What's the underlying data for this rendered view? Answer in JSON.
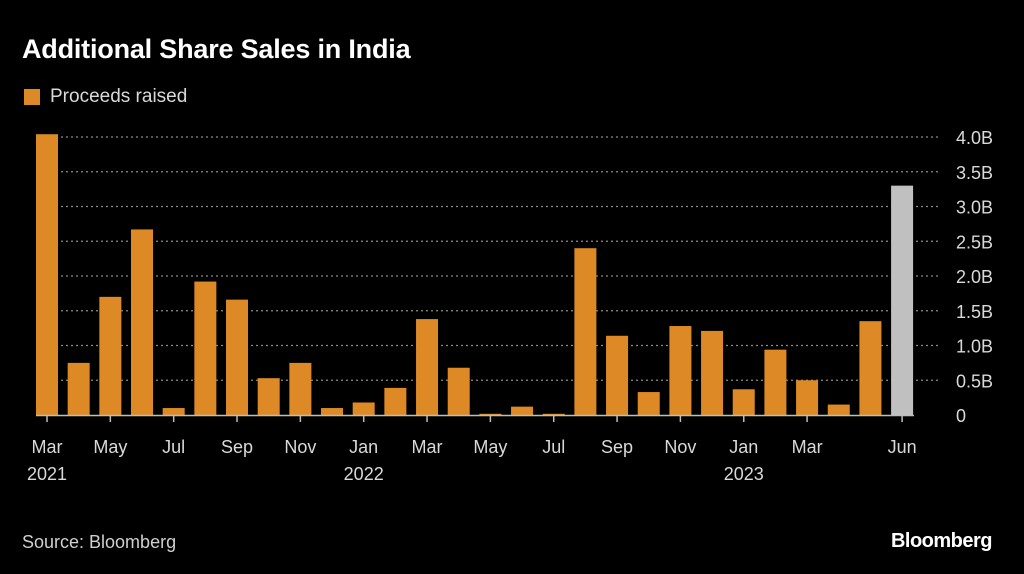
{
  "chart_data": {
    "type": "bar",
    "title": "Additional Share Sales in India",
    "legend": [
      {
        "label": "Proceeds raised",
        "color": "#dd8a26"
      }
    ],
    "legend_position": "top-left",
    "xlabel": "",
    "ylabel": "",
    "ylim": [
      0,
      4.0
    ],
    "grid": true,
    "y_axis_side": "right",
    "y_ticks": [
      {
        "value": 0,
        "label": "0"
      },
      {
        "value": 0.5,
        "label": "0.5B"
      },
      {
        "value": 1.0,
        "label": "1.0B"
      },
      {
        "value": 1.5,
        "label": "1.5B"
      },
      {
        "value": 2.0,
        "label": "2.0B"
      },
      {
        "value": 2.5,
        "label": "2.5B"
      },
      {
        "value": 3.0,
        "label": "3.0B"
      },
      {
        "value": 3.5,
        "label": "3.5B"
      },
      {
        "value": 4.0,
        "label": "4.0B"
      }
    ],
    "categories": [
      "Mar 2021",
      "Apr 2021",
      "May 2021",
      "Jun 2021",
      "Jul 2021",
      "Aug 2021",
      "Sep 2021",
      "Oct 2021",
      "Nov 2021",
      "Dec 2021",
      "Jan 2022",
      "Feb 2022",
      "Mar 2022",
      "Apr 2022",
      "May 2022",
      "Jun 2022",
      "Jul 2022",
      "Aug 2022",
      "Sep 2022",
      "Oct 2022",
      "Nov 2022",
      "Dec 2022",
      "Jan 2023",
      "Feb 2023",
      "Mar 2023",
      "Apr 2023",
      "May 2023",
      "Jun 2023"
    ],
    "values": [
      4.04,
      0.75,
      1.7,
      2.67,
      0.1,
      1.92,
      1.66,
      0.53,
      0.75,
      0.1,
      0.18,
      0.39,
      1.38,
      0.68,
      0.01,
      0.12,
      0.01,
      2.4,
      1.14,
      0.33,
      1.28,
      1.21,
      0.37,
      0.94,
      0.5,
      0.15,
      1.35,
      3.3
    ],
    "highlight": {
      "index": 27,
      "color": "#c0c0c0",
      "note": "current month"
    },
    "bar_color": "#dd8a26",
    "x_tick_labels": [
      {
        "index": 0,
        "month": "Mar",
        "year": "2021"
      },
      {
        "index": 2,
        "month": "May",
        "year": ""
      },
      {
        "index": 4,
        "month": "Jul",
        "year": ""
      },
      {
        "index": 6,
        "month": "Sep",
        "year": ""
      },
      {
        "index": 8,
        "month": "Nov",
        "year": ""
      },
      {
        "index": 10,
        "month": "Jan",
        "year": "2022"
      },
      {
        "index": 12,
        "month": "Mar",
        "year": ""
      },
      {
        "index": 14,
        "month": "May",
        "year": ""
      },
      {
        "index": 16,
        "month": "Jul",
        "year": ""
      },
      {
        "index": 18,
        "month": "Sep",
        "year": ""
      },
      {
        "index": 20,
        "month": "Nov",
        "year": ""
      },
      {
        "index": 22,
        "month": "Jan",
        "year": "2023"
      },
      {
        "index": 24,
        "month": "Mar",
        "year": ""
      },
      {
        "index": 27,
        "month": "Jun",
        "year": ""
      }
    ]
  },
  "header": {
    "title": "Additional Share Sales in India",
    "legend_label": "Proceeds raised"
  },
  "footer": {
    "source": "Source: Bloomberg",
    "brand": "Bloomberg"
  }
}
